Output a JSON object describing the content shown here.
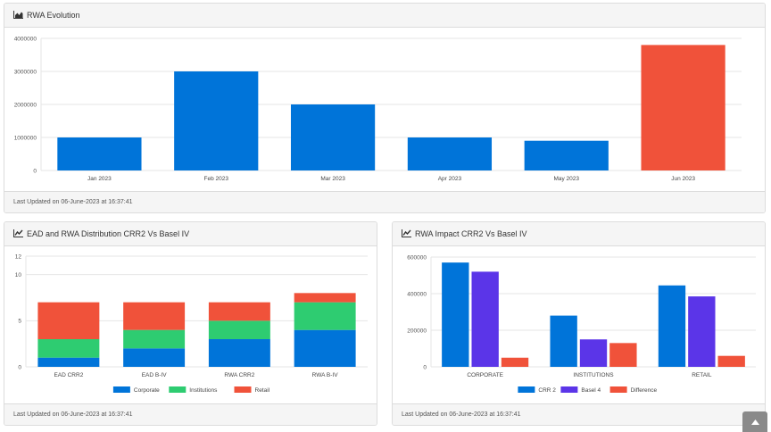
{
  "panels": {
    "rwa_evolution": {
      "title": "RWA Evolution",
      "icon": "area-chart-icon",
      "footer": "Last Updated on 06-June-2023 at 16:37:41"
    },
    "ead_distribution": {
      "title": "EAD and RWA Distribution CRR2 Vs Basel IV",
      "icon": "line-chart-icon",
      "footer": "Last Updated on 06-June-2023 at 16:37:41"
    },
    "rwa_impact": {
      "title": "RWA Impact CRR2 Vs Basel IV",
      "icon": "line-chart-icon",
      "footer": "Last Updated on 06-June-2023 at 16:37:41"
    }
  },
  "scroll_top_icon": "caret-up-icon",
  "chart_data": [
    {
      "id": "rwa_evolution",
      "type": "bar",
      "categories": [
        "Jan 2023",
        "Feb 2023",
        "Mar 2023",
        "Apr 2023",
        "May 2023",
        "Jun 2023"
      ],
      "values": [
        1000000,
        3000000,
        2000000,
        1000000,
        900000,
        3800000
      ],
      "colors": [
        "#0074d9",
        "#0074d9",
        "#0074d9",
        "#0074d9",
        "#0074d9",
        "#f0523a"
      ],
      "ylim": [
        0,
        4000000
      ],
      "yticks": [
        0,
        1000000,
        2000000,
        3000000,
        4000000
      ],
      "grid": true
    },
    {
      "id": "ead_distribution",
      "type": "bar",
      "stacked": true,
      "categories": [
        "EAD CRR2",
        "EAD B-IV",
        "RWA CRR2",
        "RWA B-IV"
      ],
      "series": [
        {
          "name": "Corporate",
          "color": "#0074d9",
          "values": [
            1,
            2,
            3,
            4
          ]
        },
        {
          "name": "Institutions",
          "color": "#2ecc71",
          "values": [
            2,
            2,
            2,
            3
          ]
        },
        {
          "name": "Retail",
          "color": "#f0523a",
          "values": [
            4,
            3,
            2,
            1
          ]
        }
      ],
      "ylim": [
        0,
        12
      ],
      "yticks": [
        0,
        5,
        10,
        12
      ],
      "legend": "bottom",
      "grid": true
    },
    {
      "id": "rwa_impact",
      "type": "bar",
      "categories": [
        "CORPORATE",
        "INSTITUTIONS",
        "RETAIL"
      ],
      "series": [
        {
          "name": "CRR 2",
          "color": "#0074d9",
          "values": [
            570000,
            280000,
            445000
          ]
        },
        {
          "name": "Basel 4",
          "color": "#5b35e8",
          "values": [
            520000,
            150000,
            385000
          ]
        },
        {
          "name": "Difference",
          "color": "#f0523a",
          "values": [
            50000,
            130000,
            60000
          ]
        }
      ],
      "ylim": [
        0,
        600000
      ],
      "yticks": [
        0,
        200000,
        400000,
        600000
      ],
      "legend": "bottom",
      "grid": true
    }
  ]
}
